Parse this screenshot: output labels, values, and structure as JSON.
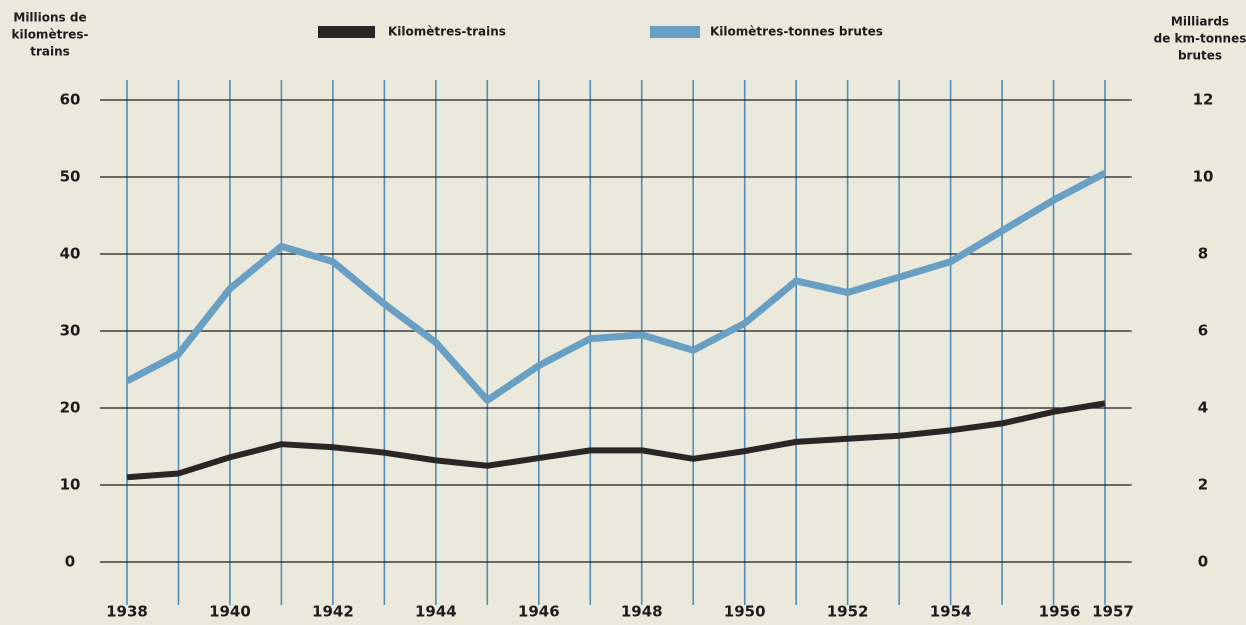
{
  "chart_data": {
    "type": "line",
    "legend": "top",
    "ylabel": [
      "Millions de",
      "kilomètres-",
      "trains"
    ],
    "y2label": [
      "Milliards",
      "de km-tonnes",
      "brutes"
    ],
    "x": [
      1938,
      1939,
      1940,
      1941,
      1942,
      1943,
      1944,
      1945,
      1946,
      1947,
      1948,
      1949,
      1950,
      1951,
      1952,
      1953,
      1954,
      1955,
      1956,
      1957
    ],
    "xlim": [
      1938,
      1957
    ],
    "xticks": [
      1938,
      1940,
      1942,
      1944,
      1946,
      1948,
      1950,
      1952,
      1954,
      1956,
      1957
    ],
    "ylim": [
      0,
      60
    ],
    "yticks": [
      0,
      10,
      20,
      30,
      40,
      50,
      60
    ],
    "y2lim": [
      0,
      12
    ],
    "y2ticks": [
      0,
      2,
      4,
      6,
      8,
      10,
      12
    ],
    "grid": true,
    "series": [
      {
        "name": "Kilomètres-trains",
        "color": "#2a2626",
        "values": [
          11.0,
          11.5,
          13.6,
          15.3,
          14.9,
          14.2,
          13.2,
          12.5,
          13.5,
          14.5,
          14.5,
          13.4,
          14.4,
          15.6,
          16.0,
          16.4,
          17.1,
          18.0,
          19.5,
          20.6
        ]
      },
      {
        "name": "Kilomètres-tonnes brutes",
        "color": "#6a9fc4",
        "axis": "y2",
        "values": [
          4.7,
          5.4,
          7.1,
          8.2,
          7.8,
          6.7,
          5.7,
          4.2,
          5.1,
          5.8,
          5.9,
          5.5,
          6.2,
          7.3,
          7.0,
          7.4,
          7.8,
          8.6,
          9.4,
          10.1
        ]
      }
    ]
  }
}
